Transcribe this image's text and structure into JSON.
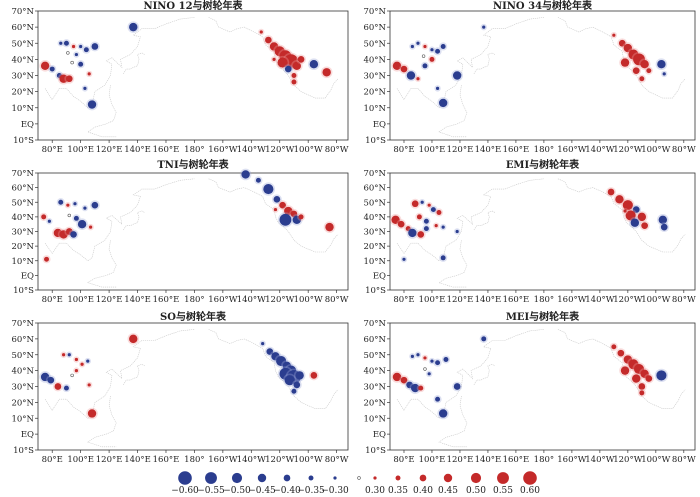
{
  "chart_data": {
    "type": "scatter",
    "figure": "Correlation between ENSO indices and tree-ring chronologies",
    "lon_ticks": [
      "80°E",
      "100°E",
      "120°E",
      "140°E",
      "160°E",
      "180°",
      "160°W",
      "140°W",
      "120°W",
      "100°W",
      "80°W"
    ],
    "lon_values": [
      80,
      100,
      120,
      140,
      160,
      180,
      200,
      220,
      240,
      260,
      280
    ],
    "lat_ticks": [
      "70°N",
      "60°N",
      "50°N",
      "40°N",
      "30°N",
      "20°N",
      "10°N",
      "EQ",
      "10°S"
    ],
    "lat_values": [
      70,
      60,
      50,
      40,
      30,
      20,
      10,
      0,
      -10
    ],
    "lon_range": [
      70,
      288
    ],
    "lat_range": [
      -10,
      70
    ],
    "legend": {
      "negative": {
        "values": [
          -0.6,
          -0.55,
          -0.5,
          -0.45,
          -0.4,
          -0.35,
          -0.3
        ],
        "labels": [
          "−0.60",
          "−0.55",
          "−0.50",
          "−0.45",
          "−0.40",
          "−0.35",
          "−0.30"
        ],
        "color": "#2b3d8f"
      },
      "neutral": {
        "value": 0
      },
      "positive": {
        "values": [
          0.3,
          0.35,
          0.4,
          0.45,
          0.5,
          0.55,
          0.6
        ],
        "labels": [
          "0.30",
          "0.35",
          "0.40",
          "0.45",
          "0.50",
          "0.55",
          "0.60"
        ],
        "color": "#c42a2a"
      }
    },
    "panels": [
      {
        "title": "NINO 12与树轮年表",
        "points": [
          {
            "lon": 75,
            "lat": 36,
            "r": 0.45
          },
          {
            "lon": 80,
            "lat": 34,
            "r": -0.35
          },
          {
            "lon": 85,
            "lat": 30,
            "r": -0.35
          },
          {
            "lon": 88,
            "lat": 28,
            "r": 0.45
          },
          {
            "lon": 92,
            "lat": 28,
            "r": 0.4
          },
          {
            "lon": 86,
            "lat": 50,
            "r": -0.3
          },
          {
            "lon": 90,
            "lat": 50,
            "r": -0.35
          },
          {
            "lon": 95,
            "lat": 48,
            "r": 0.3
          },
          {
            "lon": 100,
            "lat": 48,
            "r": -0.3
          },
          {
            "lon": 104,
            "lat": 46,
            "r": -0.35
          },
          {
            "lon": 110,
            "lat": 48,
            "r": -0.4
          },
          {
            "lon": 97,
            "lat": 43,
            "r": -0.3
          },
          {
            "lon": 100,
            "lat": 37,
            "r": -0.35
          },
          {
            "lon": 106,
            "lat": 31,
            "r": 0.3
          },
          {
            "lon": 103,
            "lat": 22,
            "r": -0.3
          },
          {
            "lon": 108,
            "lat": 12,
            "r": -0.45
          },
          {
            "lon": 137,
            "lat": 60,
            "r": -0.45
          },
          {
            "lon": 227,
            "lat": 57,
            "r": 0.3
          },
          {
            "lon": 232,
            "lat": 52,
            "r": 0.4
          },
          {
            "lon": 236,
            "lat": 48,
            "r": 0.45
          },
          {
            "lon": 240,
            "lat": 45,
            "r": 0.5
          },
          {
            "lon": 244,
            "lat": 42,
            "r": 0.55
          },
          {
            "lon": 248,
            "lat": 39,
            "r": 0.6
          },
          {
            "lon": 242,
            "lat": 38,
            "r": 0.5
          },
          {
            "lon": 252,
            "lat": 36,
            "r": 0.45
          },
          {
            "lon": 246,
            "lat": 34,
            "r": -0.4
          },
          {
            "lon": 255,
            "lat": 40,
            "r": 0.4
          },
          {
            "lon": 250,
            "lat": 30,
            "r": 0.35
          },
          {
            "lon": 250,
            "lat": 26,
            "r": 0.35
          },
          {
            "lon": 264,
            "lat": 37,
            "r": -0.45
          },
          {
            "lon": 273,
            "lat": 32,
            "r": 0.45
          },
          {
            "lon": 236,
            "lat": 40,
            "r": 0.3
          },
          {
            "lon": 94,
            "lat": 38,
            "r": 0.0
          },
          {
            "lon": 91,
            "lat": 44,
            "r": 0.0
          }
        ]
      },
      {
        "title": "NINO 34与树轮年表",
        "points": [
          {
            "lon": 75,
            "lat": 36,
            "r": 0.45
          },
          {
            "lon": 80,
            "lat": 34,
            "r": 0.4
          },
          {
            "lon": 85,
            "lat": 30,
            "r": -0.45
          },
          {
            "lon": 90,
            "lat": 28,
            "r": 0.3
          },
          {
            "lon": 95,
            "lat": 36,
            "r": -0.35
          },
          {
            "lon": 86,
            "lat": 48,
            "r": -0.3
          },
          {
            "lon": 90,
            "lat": 50,
            "r": -0.3
          },
          {
            "lon": 95,
            "lat": 48,
            "r": 0.3
          },
          {
            "lon": 100,
            "lat": 46,
            "r": -0.3
          },
          {
            "lon": 104,
            "lat": 45,
            "r": -0.35
          },
          {
            "lon": 108,
            "lat": 48,
            "r": -0.35
          },
          {
            "lon": 100,
            "lat": 40,
            "r": 0.35
          },
          {
            "lon": 104,
            "lat": 22,
            "r": -0.3
          },
          {
            "lon": 108,
            "lat": 13,
            "r": -0.45
          },
          {
            "lon": 118,
            "lat": 30,
            "r": -0.45
          },
          {
            "lon": 137,
            "lat": 60,
            "r": -0.3
          },
          {
            "lon": 230,
            "lat": 55,
            "r": 0.3
          },
          {
            "lon": 236,
            "lat": 50,
            "r": 0.4
          },
          {
            "lon": 240,
            "lat": 47,
            "r": 0.45
          },
          {
            "lon": 244,
            "lat": 43,
            "r": 0.5
          },
          {
            "lon": 248,
            "lat": 40,
            "r": 0.55
          },
          {
            "lon": 238,
            "lat": 38,
            "r": 0.45
          },
          {
            "lon": 252,
            "lat": 37,
            "r": 0.45
          },
          {
            "lon": 246,
            "lat": 33,
            "r": 0.4
          },
          {
            "lon": 255,
            "lat": 33,
            "r": 0.35
          },
          {
            "lon": 250,
            "lat": 28,
            "r": 0.35
          },
          {
            "lon": 264,
            "lat": 37,
            "r": -0.45
          },
          {
            "lon": 266,
            "lat": 31,
            "r": -0.3
          },
          {
            "lon": 94,
            "lat": 42,
            "r": 0.0
          }
        ]
      },
      {
        "title": "TNI与树轮年表",
        "points": [
          {
            "lon": 74,
            "lat": 40,
            "r": 0.35
          },
          {
            "lon": 78,
            "lat": 37,
            "r": -0.3
          },
          {
            "lon": 84,
            "lat": 29,
            "r": 0.45
          },
          {
            "lon": 88,
            "lat": 28,
            "r": 0.45
          },
          {
            "lon": 92,
            "lat": 30,
            "r": 0.4
          },
          {
            "lon": 95,
            "lat": 28,
            "r": -0.4
          },
          {
            "lon": 86,
            "lat": 50,
            "r": -0.35
          },
          {
            "lon": 91,
            "lat": 48,
            "r": 0.3
          },
          {
            "lon": 96,
            "lat": 49,
            "r": -0.3
          },
          {
            "lon": 103,
            "lat": 46,
            "r": -0.3
          },
          {
            "lon": 110,
            "lat": 48,
            "r": -0.4
          },
          {
            "lon": 97,
            "lat": 39,
            "r": -0.35
          },
          {
            "lon": 101,
            "lat": 35,
            "r": -0.45
          },
          {
            "lon": 107,
            "lat": 33,
            "r": 0.3
          },
          {
            "lon": 76,
            "lat": 11,
            "r": 0.35
          },
          {
            "lon": 216,
            "lat": 69,
            "r": -0.45
          },
          {
            "lon": 225,
            "lat": 65,
            "r": -0.35
          },
          {
            "lon": 232,
            "lat": 59,
            "r": -0.5
          },
          {
            "lon": 238,
            "lat": 52,
            "r": -0.4
          },
          {
            "lon": 242,
            "lat": 48,
            "r": 0.4
          },
          {
            "lon": 246,
            "lat": 44,
            "r": 0.45
          },
          {
            "lon": 250,
            "lat": 42,
            "r": 0.4
          },
          {
            "lon": 244,
            "lat": 38,
            "r": -0.55
          },
          {
            "lon": 252,
            "lat": 38,
            "r": -0.45
          },
          {
            "lon": 255,
            "lat": 40,
            "r": 0.35
          },
          {
            "lon": 275,
            "lat": 33,
            "r": 0.45
          },
          {
            "lon": 237,
            "lat": 45,
            "r": 0.3
          },
          {
            "lon": 92,
            "lat": 41,
            "r": 0.0
          }
        ]
      },
      {
        "title": "EMI与树轮年表",
        "points": [
          {
            "lon": 74,
            "lat": 38,
            "r": 0.45
          },
          {
            "lon": 78,
            "lat": 35,
            "r": 0.4
          },
          {
            "lon": 83,
            "lat": 32,
            "r": 0.35
          },
          {
            "lon": 86,
            "lat": 29,
            "r": -0.45
          },
          {
            "lon": 92,
            "lat": 28,
            "r": 0.4
          },
          {
            "lon": 96,
            "lat": 32,
            "r": -0.35
          },
          {
            "lon": 88,
            "lat": 49,
            "r": 0.4
          },
          {
            "lon": 93,
            "lat": 50,
            "r": -0.3
          },
          {
            "lon": 98,
            "lat": 48,
            "r": 0.3
          },
          {
            "lon": 101,
            "lat": 45,
            "r": -0.35
          },
          {
            "lon": 105,
            "lat": 43,
            "r": 0.35
          },
          {
            "lon": 91,
            "lat": 40,
            "r": 0.35
          },
          {
            "lon": 96,
            "lat": 37,
            "r": -0.35
          },
          {
            "lon": 103,
            "lat": 34,
            "r": 0.3
          },
          {
            "lon": 108,
            "lat": 33,
            "r": -0.3
          },
          {
            "lon": 108,
            "lat": 12,
            "r": -0.35
          },
          {
            "lon": 80,
            "lat": 11,
            "r": -0.3
          },
          {
            "lon": 118,
            "lat": 30,
            "r": -0.3
          },
          {
            "lon": 228,
            "lat": 57,
            "r": 0.4
          },
          {
            "lon": 234,
            "lat": 52,
            "r": 0.45
          },
          {
            "lon": 240,
            "lat": 48,
            "r": 0.5
          },
          {
            "lon": 246,
            "lat": 45,
            "r": -0.4
          },
          {
            "lon": 242,
            "lat": 41,
            "r": 0.5
          },
          {
            "lon": 250,
            "lat": 40,
            "r": 0.45
          },
          {
            "lon": 245,
            "lat": 36,
            "r": -0.45
          },
          {
            "lon": 252,
            "lat": 34,
            "r": 0.4
          },
          {
            "lon": 265,
            "lat": 38,
            "r": -0.45
          },
          {
            "lon": 266,
            "lat": 33,
            "r": -0.4
          },
          {
            "lon": 238,
            "lat": 44,
            "r": 0.3
          }
        ]
      },
      {
        "title": "SO与树轮年表",
        "points": [
          {
            "lon": 75,
            "lat": 36,
            "r": -0.45
          },
          {
            "lon": 79,
            "lat": 34,
            "r": -0.4
          },
          {
            "lon": 84,
            "lat": 30,
            "r": 0.4
          },
          {
            "lon": 90,
            "lat": 29,
            "r": -0.35
          },
          {
            "lon": 88,
            "lat": 50,
            "r": 0.3
          },
          {
            "lon": 92,
            "lat": 50,
            "r": -0.3
          },
          {
            "lon": 97,
            "lat": 47,
            "r": 0.3
          },
          {
            "lon": 101,
            "lat": 44,
            "r": 0.3
          },
          {
            "lon": 105,
            "lat": 46,
            "r": -0.3
          },
          {
            "lon": 97,
            "lat": 40,
            "r": 0.3
          },
          {
            "lon": 106,
            "lat": 31,
            "r": 0.3
          },
          {
            "lon": 108,
            "lat": 13,
            "r": 0.45
          },
          {
            "lon": 137,
            "lat": 60,
            "r": 0.45
          },
          {
            "lon": 228,
            "lat": 57,
            "r": -0.3
          },
          {
            "lon": 233,
            "lat": 52,
            "r": -0.4
          },
          {
            "lon": 237,
            "lat": 49,
            "r": -0.45
          },
          {
            "lon": 241,
            "lat": 46,
            "r": -0.5
          },
          {
            "lon": 245,
            "lat": 43,
            "r": -0.45
          },
          {
            "lon": 248,
            "lat": 40,
            "r": -0.5
          },
          {
            "lon": 244,
            "lat": 38,
            "r": -0.55
          },
          {
            "lon": 250,
            "lat": 36,
            "r": -0.6
          },
          {
            "lon": 247,
            "lat": 34,
            "r": -0.5
          },
          {
            "lon": 254,
            "lat": 37,
            "r": -0.45
          },
          {
            "lon": 252,
            "lat": 31,
            "r": -0.4
          },
          {
            "lon": 250,
            "lat": 27,
            "r": -0.35
          },
          {
            "lon": 264,
            "lat": 37,
            "r": 0.4
          },
          {
            "lon": 94,
            "lat": 37,
            "r": 0.0
          }
        ]
      },
      {
        "title": "MEI与树轮年表",
        "points": [
          {
            "lon": 75,
            "lat": 36,
            "r": 0.45
          },
          {
            "lon": 80,
            "lat": 34,
            "r": 0.4
          },
          {
            "lon": 84,
            "lat": 31,
            "r": -0.4
          },
          {
            "lon": 88,
            "lat": 29,
            "r": -0.45
          },
          {
            "lon": 92,
            "lat": 29,
            "r": 0.35
          },
          {
            "lon": 86,
            "lat": 49,
            "r": -0.3
          },
          {
            "lon": 90,
            "lat": 50,
            "r": -0.3
          },
          {
            "lon": 95,
            "lat": 48,
            "r": 0.3
          },
          {
            "lon": 100,
            "lat": 46,
            "r": -0.3
          },
          {
            "lon": 104,
            "lat": 45,
            "r": -0.35
          },
          {
            "lon": 110,
            "lat": 47,
            "r": -0.35
          },
          {
            "lon": 98,
            "lat": 38,
            "r": -0.3
          },
          {
            "lon": 104,
            "lat": 22,
            "r": -0.35
          },
          {
            "lon": 108,
            "lat": 13,
            "r": -0.45
          },
          {
            "lon": 118,
            "lat": 30,
            "r": -0.4
          },
          {
            "lon": 137,
            "lat": 60,
            "r": -0.35
          },
          {
            "lon": 230,
            "lat": 55,
            "r": 0.35
          },
          {
            "lon": 235,
            "lat": 51,
            "r": 0.4
          },
          {
            "lon": 240,
            "lat": 47,
            "r": 0.45
          },
          {
            "lon": 244,
            "lat": 44,
            "r": 0.5
          },
          {
            "lon": 248,
            "lat": 41,
            "r": 0.5
          },
          {
            "lon": 238,
            "lat": 40,
            "r": 0.45
          },
          {
            "lon": 252,
            "lat": 38,
            "r": 0.45
          },
          {
            "lon": 246,
            "lat": 35,
            "r": 0.45
          },
          {
            "lon": 255,
            "lat": 35,
            "r": 0.4
          },
          {
            "lon": 250,
            "lat": 30,
            "r": 0.4
          },
          {
            "lon": 250,
            "lat": 26,
            "r": 0.35
          },
          {
            "lon": 264,
            "lat": 37,
            "r": -0.5
          },
          {
            "lon": 95,
            "lat": 41,
            "r": 0.0
          }
        ]
      }
    ]
  }
}
